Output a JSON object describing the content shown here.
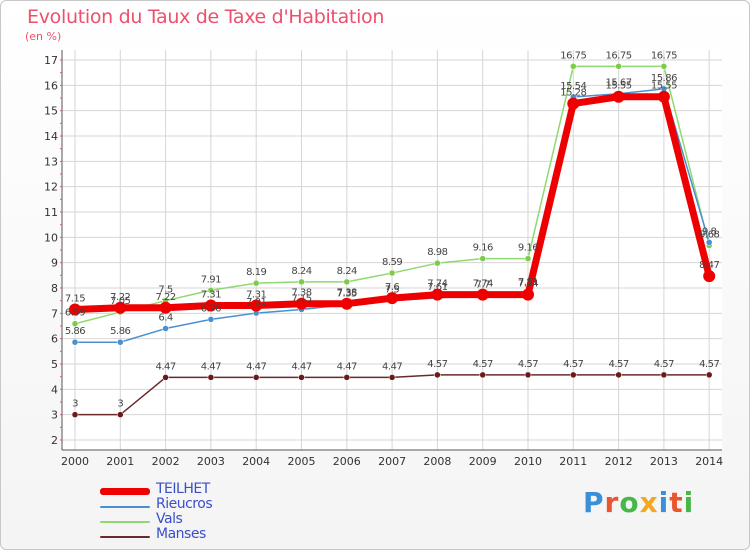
{
  "title": "Evolution du Taux de Taxe d'Habitation",
  "unit": "(en %)",
  "logo": {
    "text": "Proxiti",
    "letters": [
      "P",
      "r",
      "o",
      "x",
      "i",
      "t",
      "i"
    ],
    "colors": [
      "#3a8fd8",
      "#e8552f",
      "#46b848",
      "#f4a820",
      "#3a8fd8",
      "#e8552f",
      "#46b848"
    ]
  },
  "chart_data": {
    "type": "line",
    "title": "Evolution du Taux de Taxe d'Habitation",
    "ylabel": "(en %)",
    "xlabel": "",
    "ylim": [
      2,
      17
    ],
    "yticks": [
      2,
      3,
      4,
      5,
      6,
      7,
      8,
      9,
      10,
      11,
      12,
      13,
      14,
      15,
      16,
      17
    ],
    "categories": [
      "2000",
      "2001",
      "2002",
      "2003",
      "2004",
      "2005",
      "2006",
      "2007",
      "2008",
      "2009",
      "2010",
      "2011",
      "2012",
      "2013",
      "2014"
    ],
    "grid": true,
    "legend_position": "bottom-left",
    "series": [
      {
        "name": "TEILHET",
        "color": "#ee0000",
        "values": [
          7.15,
          7.22,
          7.22,
          7.31,
          7.31,
          7.38,
          7.38,
          7.6,
          7.74,
          7.74,
          7.74,
          15.28,
          15.55,
          15.55,
          8.47
        ],
        "labels": [
          "7.15",
          "7.22",
          "7.22",
          "7.31",
          "7.31",
          "7.38",
          "7.38",
          "7.6",
          "7.74",
          "7.74",
          "7.74",
          "15.28",
          "15.55",
          "15.55",
          "8.47"
        ]
      },
      {
        "name": "Rieucros",
        "color": "#4a90d0",
        "values": [
          5.86,
          5.86,
          6.4,
          6.76,
          7.01,
          7.15,
          7.35,
          7.5,
          7.61,
          7.7,
          7.81,
          15.54,
          15.67,
          15.86,
          9.8
        ],
        "labels": [
          "5.86",
          "5.86",
          "6.4",
          "6.76",
          "7.01",
          "7.15",
          "7.35",
          "7.5",
          "7.61",
          "7.7",
          "7.81",
          "15.54",
          "15.67",
          "15.86",
          "9.8"
        ]
      },
      {
        "name": "Vals",
        "color": "#90d870",
        "values": [
          6.59,
          7.05,
          7.5,
          7.91,
          8.19,
          8.24,
          8.24,
          8.59,
          8.98,
          9.16,
          9.16,
          16.75,
          16.75,
          16.75,
          9.68
        ],
        "labels": [
          "6.59",
          "7.05",
          "7.5",
          "7.91",
          "8.19",
          "8.24",
          "8.24",
          "8.59",
          "8.98",
          "9.16",
          "9.16",
          "16.75",
          "16.75",
          "16.75",
          "9.68"
        ]
      },
      {
        "name": "Manses",
        "color": "#6b2a2a",
        "values": [
          3,
          3,
          4.47,
          4.47,
          4.47,
          4.47,
          4.47,
          4.47,
          4.57,
          4.57,
          4.57,
          4.57,
          4.57,
          4.57,
          4.57
        ],
        "labels": [
          "3",
          "3",
          "4.47",
          "4.47",
          "4.47",
          "4.47",
          "4.47",
          "4.47",
          "4.57",
          "4.57",
          "4.57",
          "4.57",
          "4.57",
          "4.57",
          "4.57"
        ]
      }
    ]
  }
}
